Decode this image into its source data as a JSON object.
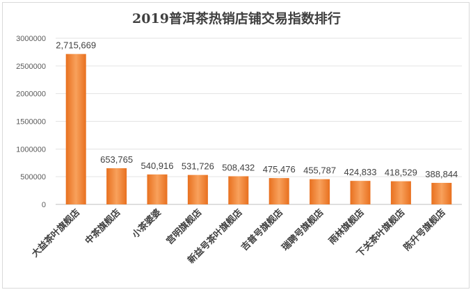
{
  "chart_data": {
    "type": "bar",
    "title": "2019普洱茶热销店铺交易指数排行",
    "xlabel": "",
    "ylabel": "",
    "ylim": [
      0,
      3000000
    ],
    "yticks": [
      0,
      500000,
      1000000,
      1500000,
      2000000,
      2500000,
      3000000
    ],
    "ytick_labels": [
      "0",
      "500000",
      "1000000",
      "1500000",
      "2000000",
      "2500000",
      "3000000"
    ],
    "grid": true,
    "categories": [
      "大益茶叶旗舰店",
      "中茶旗舰店",
      "小茶婆婆",
      "宫明旗舰店",
      "新益号茶叶旗舰店",
      "吉普号旗舰店",
      "瑞聘号旗舰店",
      "雨林旗舰店",
      "下关茶叶旗舰店",
      "陈升号旗舰店"
    ],
    "values": [
      2715669,
      653765,
      540916,
      531726,
      508432,
      475476,
      455787,
      424833,
      418529,
      388844
    ],
    "data_labels": [
      "2,715,669",
      "653,765",
      "540,916",
      "531,726",
      "508,432",
      "475,476",
      "455,787",
      "424,833",
      "418,529",
      "388,844"
    ],
    "bar_color": "#ed7d31",
    "bar_color_light": "#f8a15c"
  }
}
